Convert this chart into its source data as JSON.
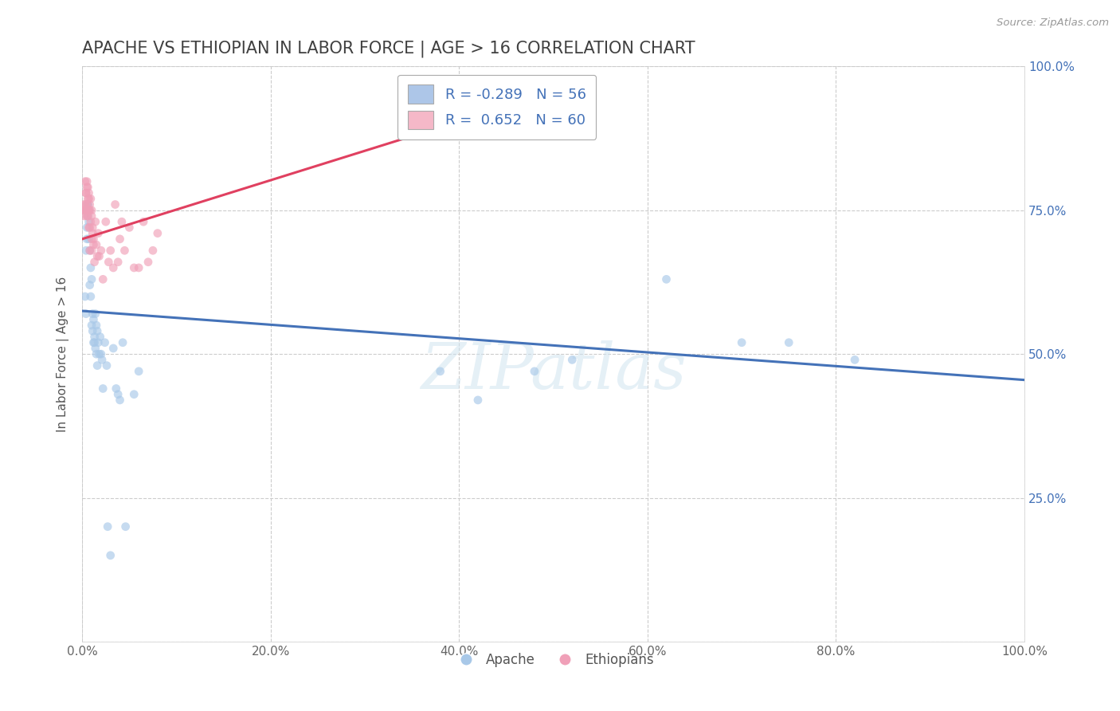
{
  "title": "APACHE VS ETHIOPIAN IN LABOR FORCE | AGE > 16 CORRELATION CHART",
  "source": "Source: ZipAtlas.com",
  "ylabel": "In Labor Force | Age > 16",
  "background_color": "#ffffff",
  "watermark": "ZIPatlas",
  "legend": {
    "apache": {
      "R": -0.289,
      "N": 56,
      "color": "#adc6e8"
    },
    "ethiopian": {
      "R": 0.652,
      "N": 60,
      "color": "#f5b8c8"
    }
  },
  "apache_color": "#a8c8e8",
  "ethiopian_color": "#f0a0b8",
  "apache_line_color": "#4472b8",
  "ethiopian_line_color": "#e04060",
  "apache_line": {
    "x0": 0.0,
    "y0": 0.575,
    "x1": 1.0,
    "y1": 0.455
  },
  "ethiopian_line": {
    "x0": 0.0,
    "y0": 0.7,
    "x1": 0.45,
    "y1": 0.93
  },
  "apache_points": [
    [
      0.003,
      0.6
    ],
    [
      0.004,
      0.57
    ],
    [
      0.004,
      0.68
    ],
    [
      0.005,
      0.72
    ],
    [
      0.005,
      0.75
    ],
    [
      0.005,
      0.7
    ],
    [
      0.006,
      0.74
    ],
    [
      0.006,
      0.76
    ],
    [
      0.006,
      0.76
    ],
    [
      0.007,
      0.73
    ],
    [
      0.007,
      0.7
    ],
    [
      0.007,
      0.75
    ],
    [
      0.008,
      0.68
    ],
    [
      0.008,
      0.62
    ],
    [
      0.009,
      0.65
    ],
    [
      0.009,
      0.6
    ],
    [
      0.01,
      0.55
    ],
    [
      0.01,
      0.63
    ],
    [
      0.011,
      0.57
    ],
    [
      0.011,
      0.54
    ],
    [
      0.012,
      0.56
    ],
    [
      0.012,
      0.52
    ],
    [
      0.013,
      0.52
    ],
    [
      0.013,
      0.53
    ],
    [
      0.014,
      0.57
    ],
    [
      0.014,
      0.51
    ],
    [
      0.015,
      0.55
    ],
    [
      0.015,
      0.5
    ],
    [
      0.016,
      0.54
    ],
    [
      0.016,
      0.48
    ],
    [
      0.017,
      0.52
    ],
    [
      0.018,
      0.5
    ],
    [
      0.019,
      0.53
    ],
    [
      0.02,
      0.5
    ],
    [
      0.021,
      0.49
    ],
    [
      0.022,
      0.44
    ],
    [
      0.024,
      0.52
    ],
    [
      0.026,
      0.48
    ],
    [
      0.027,
      0.2
    ],
    [
      0.03,
      0.15
    ],
    [
      0.033,
      0.51
    ],
    [
      0.036,
      0.44
    ],
    [
      0.038,
      0.43
    ],
    [
      0.04,
      0.42
    ],
    [
      0.043,
      0.52
    ],
    [
      0.046,
      0.2
    ],
    [
      0.055,
      0.43
    ],
    [
      0.06,
      0.47
    ],
    [
      0.38,
      0.47
    ],
    [
      0.42,
      0.42
    ],
    [
      0.48,
      0.47
    ],
    [
      0.52,
      0.49
    ],
    [
      0.62,
      0.63
    ],
    [
      0.7,
      0.52
    ],
    [
      0.75,
      0.52
    ],
    [
      0.82,
      0.49
    ]
  ],
  "ethiopian_points": [
    [
      0.001,
      0.75
    ],
    [
      0.002,
      0.76
    ],
    [
      0.002,
      0.74
    ],
    [
      0.003,
      0.8
    ],
    [
      0.003,
      0.75
    ],
    [
      0.003,
      0.76
    ],
    [
      0.004,
      0.78
    ],
    [
      0.004,
      0.75
    ],
    [
      0.004,
      0.78
    ],
    [
      0.005,
      0.79
    ],
    [
      0.005,
      0.76
    ],
    [
      0.005,
      0.75
    ],
    [
      0.005,
      0.74
    ],
    [
      0.005,
      0.8
    ],
    [
      0.006,
      0.77
    ],
    [
      0.006,
      0.75
    ],
    [
      0.006,
      0.74
    ],
    [
      0.006,
      0.79
    ],
    [
      0.007,
      0.77
    ],
    [
      0.007,
      0.75
    ],
    [
      0.007,
      0.72
    ],
    [
      0.007,
      0.78
    ],
    [
      0.008,
      0.75
    ],
    [
      0.008,
      0.72
    ],
    [
      0.008,
      0.68
    ],
    [
      0.008,
      0.76
    ],
    [
      0.009,
      0.73
    ],
    [
      0.009,
      0.77
    ],
    [
      0.01,
      0.74
    ],
    [
      0.01,
      0.7
    ],
    [
      0.01,
      0.68
    ],
    [
      0.01,
      0.75
    ],
    [
      0.011,
      0.71
    ],
    [
      0.011,
      0.72
    ],
    [
      0.012,
      0.69
    ],
    [
      0.012,
      0.7
    ],
    [
      0.013,
      0.66
    ],
    [
      0.014,
      0.73
    ],
    [
      0.015,
      0.69
    ],
    [
      0.016,
      0.67
    ],
    [
      0.017,
      0.71
    ],
    [
      0.018,
      0.67
    ],
    [
      0.02,
      0.68
    ],
    [
      0.022,
      0.63
    ],
    [
      0.025,
      0.73
    ],
    [
      0.028,
      0.66
    ],
    [
      0.03,
      0.68
    ],
    [
      0.033,
      0.65
    ],
    [
      0.035,
      0.76
    ],
    [
      0.038,
      0.66
    ],
    [
      0.04,
      0.7
    ],
    [
      0.042,
      0.73
    ],
    [
      0.045,
      0.68
    ],
    [
      0.05,
      0.72
    ],
    [
      0.055,
      0.65
    ],
    [
      0.06,
      0.65
    ],
    [
      0.065,
      0.73
    ],
    [
      0.07,
      0.66
    ],
    [
      0.075,
      0.68
    ],
    [
      0.08,
      0.71
    ]
  ],
  "xlim": [
    0.0,
    1.0
  ],
  "ylim": [
    0.0,
    1.0
  ],
  "xticks": [
    0.0,
    0.2,
    0.4,
    0.6,
    0.8,
    1.0
  ],
  "xtick_labels": [
    "0.0%",
    "20.0%",
    "40.0%",
    "60.0%",
    "80.0%",
    "100.0%"
  ],
  "yticks": [
    0.0,
    0.25,
    0.5,
    0.75,
    1.0
  ],
  "ytick_labels_right": [
    "",
    "25.0%",
    "50.0%",
    "75.0%",
    "100.0%"
  ],
  "grid_color": "#cccccc",
  "title_fontsize": 15,
  "label_fontsize": 11,
  "tick_fontsize": 11,
  "marker_size": 60,
  "marker_alpha": 0.65
}
